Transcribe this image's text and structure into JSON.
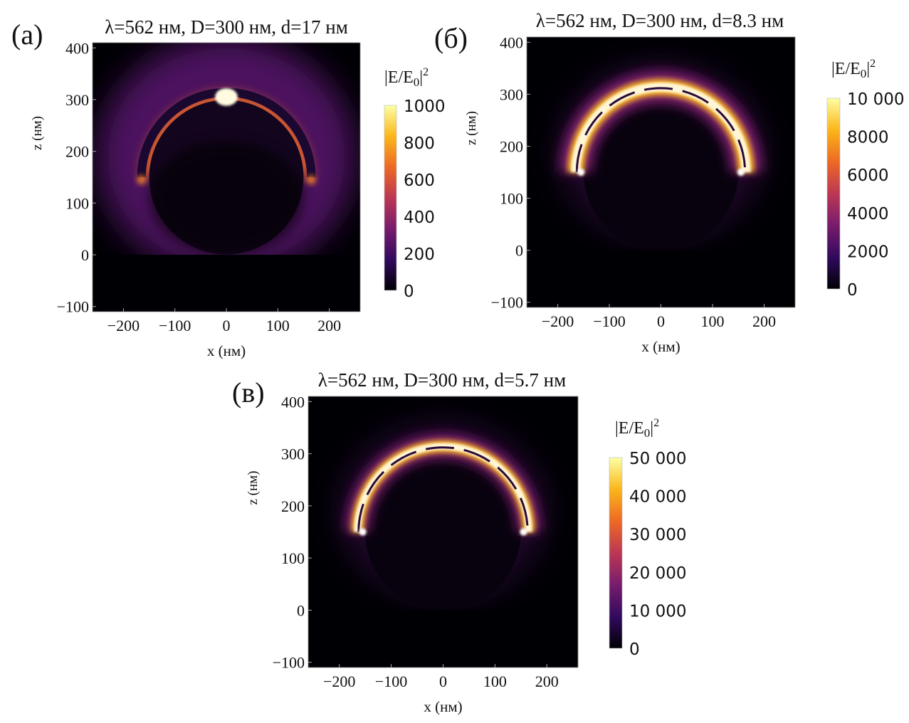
{
  "chart_data": [
    {
      "type": "heatmap",
      "panel_label": "(a)",
      "title": "λ=562 нм, D=300 нм, d=17 нм",
      "xlabel": "x (нм)",
      "ylabel": "z (нм)",
      "xlim": [
        -260,
        260
      ],
      "ylim": [
        -110,
        410
      ],
      "xticks": [
        -200,
        -100,
        0,
        100,
        200
      ],
      "xtick_labels": [
        "−200",
        "−100",
        "0",
        "100",
        "200"
      ],
      "yticks": [
        -100,
        0,
        100,
        200,
        300,
        400
      ],
      "ytick_labels": [
        "−100",
        "0",
        "100",
        "200",
        "300",
        "400"
      ],
      "colorbar": {
        "title": "|E/E",
        "title_sub": "0",
        "title_sup": "2",
        "range": [
          0,
          1000
        ],
        "ticks": [
          0,
          200,
          400,
          600,
          800,
          1000
        ],
        "tick_labels": [
          "0",
          "200",
          "400",
          "600",
          "800",
          "1000"
        ]
      },
      "colormap": "inferno",
      "hotspot": "top"
    },
    {
      "type": "heatmap",
      "panel_label": "(б)",
      "title": "λ=562 нм, D=300 нм, d=8.3 нм",
      "xlabel": "x (нм)",
      "ylabel": "z (нм)",
      "xlim": [
        -260,
        260
      ],
      "ylim": [
        -110,
        410
      ],
      "xticks": [
        -200,
        -100,
        0,
        100,
        200
      ],
      "xtick_labels": [
        "−200",
        "−100",
        "0",
        "100",
        "200"
      ],
      "yticks": [
        -100,
        0,
        100,
        200,
        300,
        400
      ],
      "ytick_labels": [
        "−100",
        "0",
        "100",
        "200",
        "300",
        "400"
      ],
      "colorbar": {
        "title": "|E/E",
        "title_sub": "0",
        "title_sup": "2",
        "range": [
          0,
          10000
        ],
        "ticks": [
          0,
          2000,
          4000,
          6000,
          8000,
          10000
        ],
        "tick_labels": [
          "0",
          "2000",
          "4000",
          "6000",
          "8000",
          "10 000"
        ]
      },
      "colormap": "inferno",
      "hotspot": "ends"
    },
    {
      "type": "heatmap",
      "panel_label": "(в)",
      "title": "λ=562 нм, D=300 нм, d=5.7 нм",
      "xlabel": "x (нм)",
      "ylabel": "z (нм)",
      "xlim": [
        -260,
        260
      ],
      "ylim": [
        -110,
        410
      ],
      "xticks": [
        -200,
        -100,
        0,
        100,
        200
      ],
      "xtick_labels": [
        "−200",
        "−100",
        "0",
        "100",
        "200"
      ],
      "yticks": [
        -100,
        0,
        100,
        200,
        300,
        400
      ],
      "ytick_labels": [
        "−100",
        "0",
        "100",
        "200",
        "300",
        "400"
      ],
      "colorbar": {
        "title": "|E/E",
        "title_sub": "0",
        "title_sup": "2",
        "range": [
          0,
          50000
        ],
        "ticks": [
          0,
          10000,
          20000,
          30000,
          40000,
          50000
        ],
        "tick_labels": [
          "0",
          "10 000",
          "20 000",
          "30 000",
          "40 000",
          "50 000"
        ]
      },
      "colormap": "inferno",
      "hotspot": "ends"
    }
  ],
  "colors": {
    "inferno": [
      "#000004",
      "#320a5e",
      "#781c6d",
      "#bc3754",
      "#ed6925",
      "#fbb61a",
      "#fcffa4"
    ]
  }
}
